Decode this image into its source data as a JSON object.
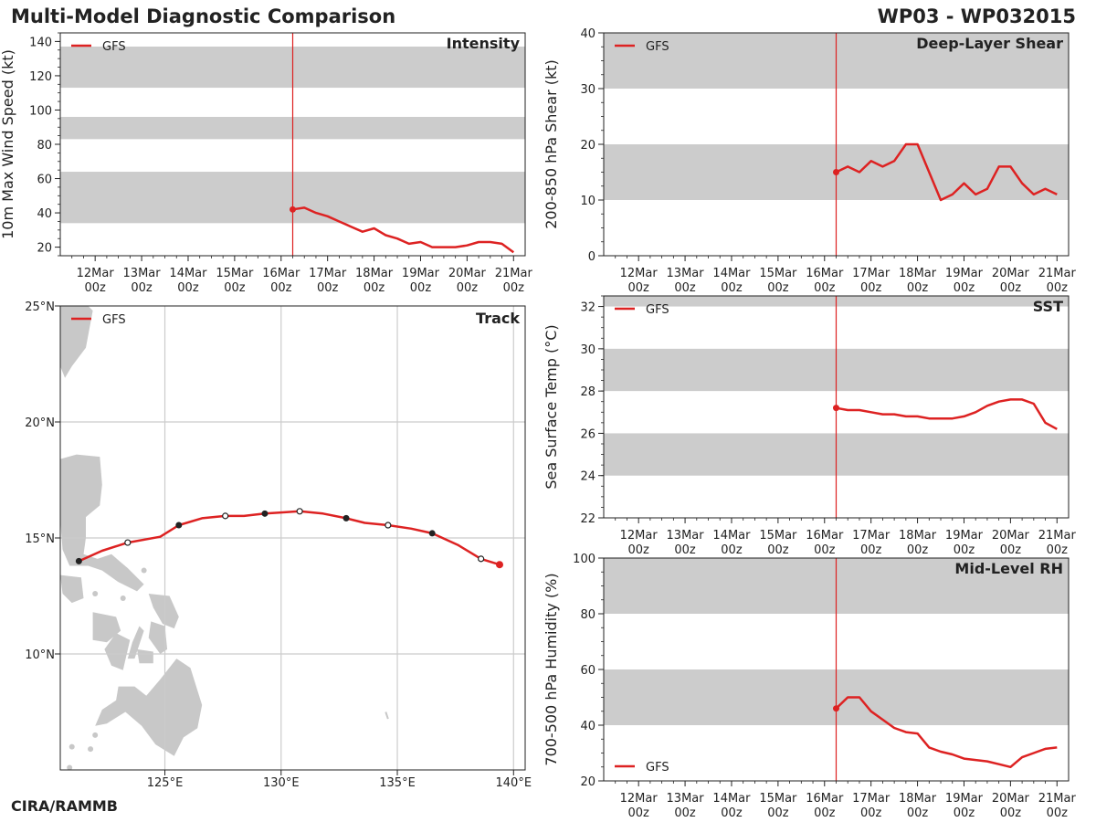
{
  "header": {
    "title": "Multi-Model Diagnostic Comparison",
    "storm_id": "WP03 - WP032015",
    "credit": "CIRA/RAMMB"
  },
  "colors": {
    "series": "#dd2222",
    "band": "#cccccc",
    "land": "#c8c8c8",
    "grid": "#cccccc",
    "text": "#222222"
  },
  "time_ticks": {
    "values": [
      12,
      13,
      14,
      15,
      16,
      17,
      18,
      19,
      20,
      21
    ],
    "labels_top": [
      "12Mar",
      "13Mar",
      "14Mar",
      "15Mar",
      "16Mar",
      "17Mar",
      "18Mar",
      "19Mar",
      "20Mar",
      "21Mar"
    ],
    "labels_bottom": [
      "00z",
      "00z",
      "00z",
      "00z",
      "00z",
      "00z",
      "00z",
      "00z",
      "00z",
      "00z"
    ],
    "xlim": [
      11.25,
      21.25
    ],
    "init_time": 16.25
  },
  "chart_data": [
    {
      "id": "intensity",
      "type": "line",
      "title": "Intensity",
      "ylabel": "10m Max Wind Speed (kt)",
      "ylim": [
        15,
        145
      ],
      "yticks": [
        20,
        40,
        60,
        80,
        100,
        120,
        140
      ],
      "bands": [
        [
          34,
          64
        ],
        [
          83,
          96
        ],
        [
          113,
          137
        ]
      ],
      "legend": "top-left",
      "series": [
        {
          "name": "GFS",
          "x": [
            16.25,
            16.5,
            16.75,
            17.0,
            17.25,
            17.5,
            17.75,
            18.0,
            18.25,
            18.5,
            18.75,
            19.0,
            19.25,
            19.5,
            19.75,
            20.0,
            20.25,
            20.5,
            20.75,
            21.0
          ],
          "y": [
            42,
            43,
            40,
            38,
            35,
            32,
            29,
            31,
            27,
            25,
            22,
            23,
            20,
            20,
            20,
            21,
            23,
            23,
            22,
            17
          ]
        }
      ]
    },
    {
      "id": "shear",
      "type": "line",
      "title": "Deep-Layer Shear",
      "ylabel": "200-850 hPa Shear (kt)",
      "ylim": [
        0,
        40
      ],
      "yticks": [
        0,
        10,
        20,
        30,
        40
      ],
      "bands": [
        [
          10,
          20
        ],
        [
          30,
          40
        ]
      ],
      "legend": "top-left",
      "series": [
        {
          "name": "GFS",
          "x": [
            16.25,
            16.5,
            16.75,
            17.0,
            17.25,
            17.5,
            17.75,
            18.0,
            18.25,
            18.5,
            18.75,
            19.0,
            19.25,
            19.5,
            19.75,
            20.0,
            20.25,
            20.5,
            20.75,
            21.0
          ],
          "y": [
            15,
            16,
            15,
            17,
            16,
            17,
            20,
            20,
            15,
            10,
            11,
            13,
            11,
            12,
            16,
            16,
            13,
            11,
            12,
            11
          ]
        }
      ]
    },
    {
      "id": "sst",
      "type": "line",
      "title": "SST",
      "ylabel": "Sea Surface Temp (°C)",
      "ylim": [
        22,
        32.5
      ],
      "yticks": [
        22,
        24,
        26,
        28,
        30,
        32
      ],
      "bands": [
        [
          24,
          26
        ],
        [
          28,
          30
        ],
        [
          32,
          32.5
        ]
      ],
      "legend": "top-left",
      "series": [
        {
          "name": "GFS",
          "x": [
            16.25,
            16.5,
            16.75,
            17.0,
            17.25,
            17.5,
            17.75,
            18.0,
            18.25,
            18.5,
            18.75,
            19.0,
            19.25,
            19.5,
            19.75,
            20.0,
            20.25,
            20.5,
            20.75,
            21.0
          ],
          "y": [
            27.2,
            27.1,
            27.1,
            27.0,
            26.9,
            26.9,
            26.8,
            26.8,
            26.7,
            26.7,
            26.7,
            26.8,
            27.0,
            27.3,
            27.5,
            27.6,
            27.6,
            27.4,
            26.5,
            26.2
          ]
        }
      ]
    },
    {
      "id": "rh",
      "type": "line",
      "title": "Mid-Level RH",
      "ylabel": "700-500 hPa Humidity (%)",
      "ylim": [
        20,
        100
      ],
      "yticks": [
        20,
        40,
        60,
        80,
        100
      ],
      "bands": [
        [
          40,
          60
        ],
        [
          80,
          100
        ]
      ],
      "legend": "bottom-left",
      "series": [
        {
          "name": "GFS",
          "x": [
            16.25,
            16.5,
            16.75,
            17.0,
            17.25,
            17.5,
            17.75,
            18.0,
            18.25,
            18.5,
            18.75,
            19.0,
            19.25,
            19.5,
            19.75,
            20.0,
            20.25,
            20.5,
            20.75,
            21.0
          ],
          "y": [
            46,
            50,
            50,
            45,
            42,
            39,
            37.5,
            37,
            32,
            30.5,
            29.5,
            28,
            27.5,
            27,
            26,
            25,
            28.5,
            30,
            31.5,
            32
          ]
        }
      ]
    },
    {
      "id": "track",
      "type": "scatter",
      "title": "Track",
      "xlim": [
        120.5,
        140.5
      ],
      "ylim": [
        5,
        25
      ],
      "xticks": [
        125,
        130,
        135,
        140
      ],
      "xtick_labels": [
        "125°E",
        "130°E",
        "135°E",
        "140°E"
      ],
      "yticks": [
        10,
        15,
        20,
        25
      ],
      "ytick_labels": [
        "10°N",
        "15°N",
        "20°N",
        "25°N"
      ],
      "legend": "top-left",
      "series": [
        {
          "name": "GFS",
          "lon": [
            139.4,
            138.6,
            137.6,
            136.5,
            135.6,
            134.6,
            133.6,
            132.8,
            131.8,
            130.8,
            130.0,
            129.3,
            128.4,
            127.6,
            126.6,
            125.6,
            124.8,
            123.4,
            122.3,
            121.3
          ],
          "lat": [
            13.85,
            14.1,
            14.7,
            15.2,
            15.4,
            15.55,
            15.65,
            15.85,
            16.05,
            16.15,
            16.1,
            16.05,
            15.95,
            15.95,
            15.85,
            15.55,
            15.05,
            14.8,
            14.45,
            14.0
          ],
          "markers_filled": [
            139.4,
            136.5,
            132.8,
            129.3,
            125.6,
            121.3
          ],
          "markers_open": [
            138.6,
            134.6,
            130.8,
            127.6,
            123.4
          ]
        }
      ]
    }
  ]
}
